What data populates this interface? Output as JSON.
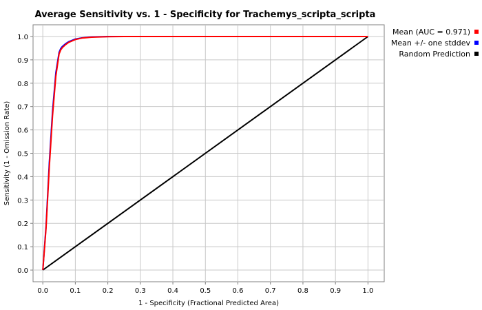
{
  "chart_data": {
    "type": "line",
    "title": "Average Sensitivity vs. 1 - Specificity for Trachemys_scripta_scripta",
    "xlabel": "1 - Specificity (Fractional Predicted Area)",
    "ylabel": "Sensitivity (1 - Omission Rate)",
    "xlim": [
      -0.03,
      1.05
    ],
    "ylim": [
      -0.05,
      1.05
    ],
    "xticks": [
      "0.0",
      "0.1",
      "0.2",
      "0.3",
      "0.4",
      "0.5",
      "0.6",
      "0.7",
      "0.8",
      "0.9",
      "1.0"
    ],
    "yticks": [
      "0.0",
      "0.1",
      "0.2",
      "0.3",
      "0.4",
      "0.5",
      "0.6",
      "0.7",
      "0.8",
      "0.9",
      "1.0"
    ],
    "grid": true,
    "legend_position": "right",
    "series": [
      {
        "name": "Mean (AUC = 0.971)",
        "color": "#ff0000",
        "x": [
          0,
          0.01,
          0.02,
          0.03,
          0.04,
          0.05,
          0.055,
          0.06,
          0.07,
          0.08,
          0.1,
          0.12,
          0.15,
          0.2,
          0.25,
          0.3,
          0.5,
          1.0
        ],
        "y": [
          0,
          0.18,
          0.44,
          0.66,
          0.83,
          0.925,
          0.942,
          0.952,
          0.965,
          0.975,
          0.987,
          0.993,
          0.997,
          0.999,
          1.0,
          1.0,
          1.0,
          1.0
        ]
      },
      {
        "name": "Mean +/- one stddev",
        "color": "#0000ff",
        "x": [
          0,
          0.01,
          0.02,
          0.03,
          0.04,
          0.05,
          0.055,
          0.06,
          0.07,
          0.08,
          0.1,
          0.12,
          0.15,
          0.2,
          0.25,
          0.3,
          0.5,
          1.0
        ],
        "y": [
          0,
          0.19,
          0.46,
          0.68,
          0.845,
          0.932,
          0.948,
          0.957,
          0.969,
          0.978,
          0.989,
          0.994,
          0.998,
          1.0,
          1.0,
          1.0,
          1.0,
          1.0
        ]
      },
      {
        "name": "Random Prediction",
        "color": "#000000",
        "x": [
          0,
          1
        ],
        "y": [
          0,
          1
        ]
      }
    ]
  }
}
